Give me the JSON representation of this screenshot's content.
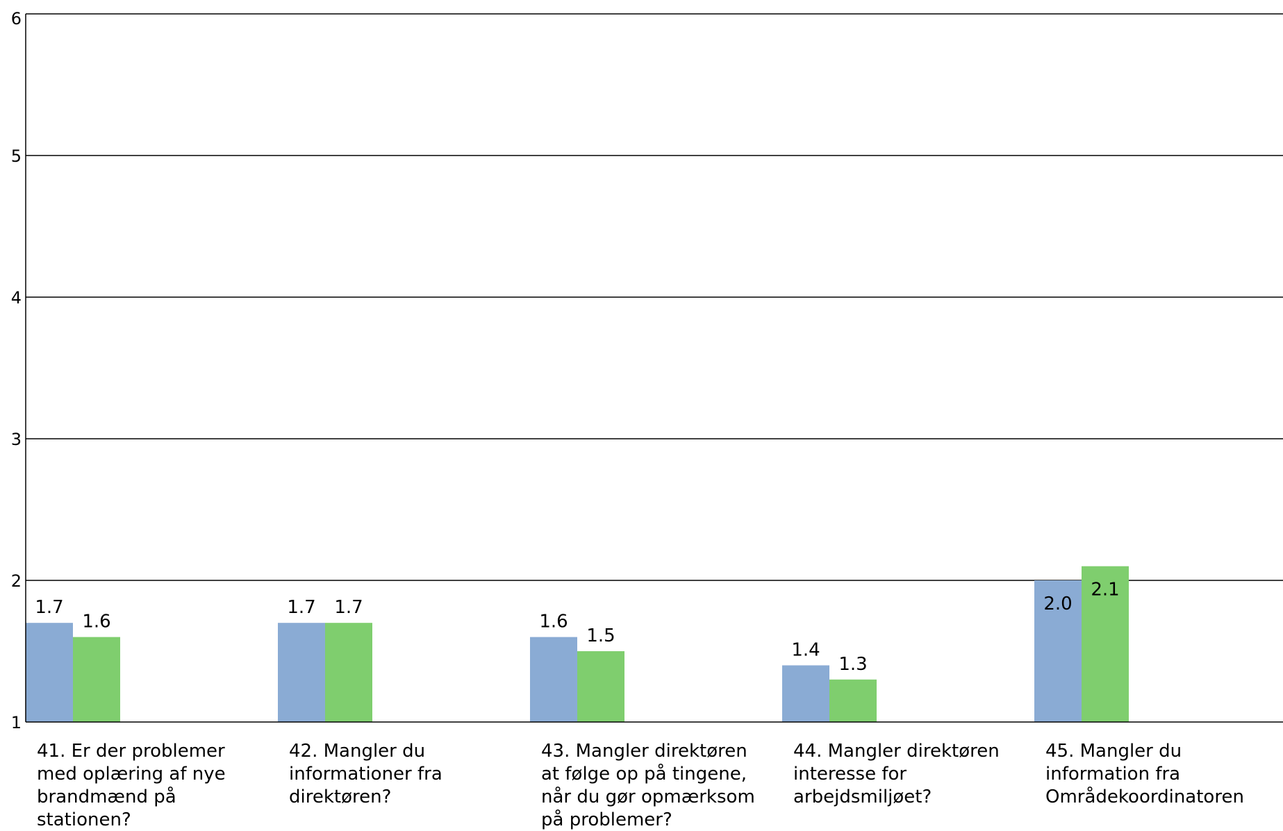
{
  "chart_data": {
    "type": "bar",
    "categories": [
      [
        "41. Er der problemer",
        "med oplæring af nye",
        "brandmænd på",
        "stationen?"
      ],
      [
        "42. Mangler du",
        "informationer fra",
        "direktøren?"
      ],
      [
        "43. Mangler direktøren",
        "at følge op på tingene,",
        "når du gør opmærksom",
        "på problemer?"
      ],
      [
        "44. Mangler direktøren",
        "interesse for",
        "arbejdsmiljøet?"
      ],
      [
        "45. Mangler du",
        "information fra",
        "Områdekoordinatoren"
      ]
    ],
    "series": [
      {
        "values": [
          1.7,
          1.7,
          1.6,
          1.4,
          2.0
        ],
        "labels": [
          "1.7",
          "1.7",
          "1.6",
          "1.4",
          "2.0"
        ],
        "color": "#8aabd4"
      },
      {
        "values": [
          1.6,
          1.7,
          1.5,
          1.3,
          2.1
        ],
        "labels": [
          "1.6",
          "1.7",
          "1.5",
          "1.3",
          "2.1"
        ],
        "color": "#7fce6e"
      }
    ],
    "ylim": [
      1,
      6
    ],
    "yticks": [
      "1",
      "2",
      "3",
      "4",
      "5",
      "6"
    ],
    "grid": true,
    "title": "",
    "xlabel": "",
    "ylabel": ""
  }
}
